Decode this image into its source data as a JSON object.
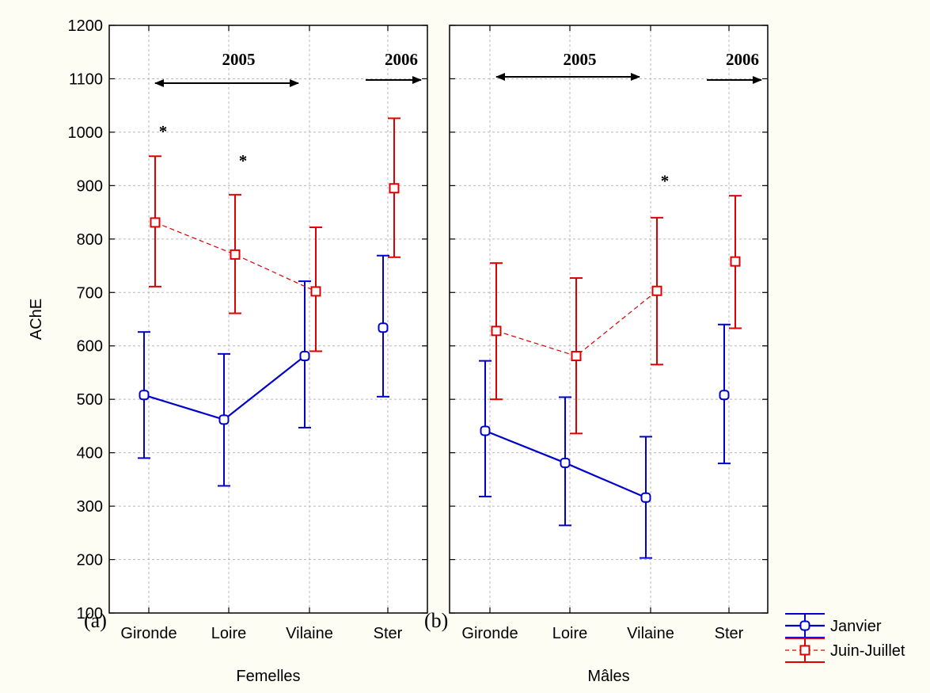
{
  "chart_data": {
    "type": "line",
    "ylabel": "AChE",
    "ylim": [
      100,
      1200
    ],
    "yticks": [
      100,
      200,
      300,
      400,
      500,
      600,
      700,
      800,
      900,
      1000,
      1100,
      1200
    ],
    "categories": [
      "Gironde",
      "Loire",
      "Vilaine",
      "Ster"
    ],
    "grid": true,
    "legend_placement": "bottom-right",
    "legend": [
      {
        "name": "Janvier",
        "color": "#0000cc",
        "line": "solid",
        "marker": "circle"
      },
      {
        "name": "Juin-Juillet",
        "color": "#dd0000",
        "line": "dashed",
        "marker": "square"
      }
    ],
    "panels": [
      {
        "xlabel": "Femelles",
        "panel_label": "(a)",
        "series": [
          {
            "name": "Janvier",
            "values": [
              508,
              462,
              581,
              634
            ],
            "lower": [
              390,
              338,
              447,
              505
            ],
            "upper": [
              626,
              585,
              721,
              769
            ]
          },
          {
            "name": "Juin-Juillet",
            "values": [
              831,
              771,
              702,
              895
            ],
            "lower": [
              711,
              661,
              590,
              766
            ],
            "upper": [
              955,
              883,
              822,
              1026
            ]
          }
        ],
        "annotations": {
          "arrow_2005_label": "2005",
          "arrow_2006_label": "2006",
          "significance": [
            {
              "text": "*",
              "category": "Gironde",
              "y": 1015
            },
            {
              "text": "*",
              "category": "Loire",
              "y": 960
            }
          ]
        }
      },
      {
        "xlabel": "Mâles",
        "panel_label": "(b)",
        "series": [
          {
            "name": "Janvier",
            "values": [
              441,
              381,
              316,
              508
            ],
            "lower": [
              318,
              264,
              203,
              380
            ],
            "upper": [
              572,
              504,
              430,
              640
            ]
          },
          {
            "name": "Juin-Juillet",
            "values": [
              628,
              581,
              703,
              758
            ],
            "lower": [
              500,
              436,
              565,
              633
            ],
            "upper": [
              755,
              727,
              840,
              881
            ]
          }
        ],
        "annotations": {
          "arrow_2005_label": "2005",
          "arrow_2006_label": "2006",
          "significance": [
            {
              "text": "*",
              "category": "Vilaine",
              "y": 922
            }
          ]
        }
      }
    ]
  }
}
